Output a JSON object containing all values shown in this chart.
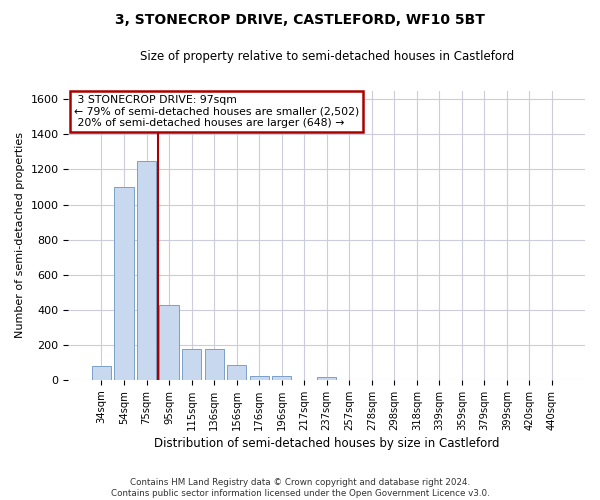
{
  "title": "3, STONECROP DRIVE, CASTLEFORD, WF10 5BT",
  "subtitle": "Size of property relative to semi-detached houses in Castleford",
  "xlabel": "Distribution of semi-detached houses by size in Castleford",
  "ylabel": "Number of semi-detached properties",
  "categories": [
    "34sqm",
    "54sqm",
    "75sqm",
    "95sqm",
    "115sqm",
    "136sqm",
    "156sqm",
    "176sqm",
    "196sqm",
    "217sqm",
    "237sqm",
    "257sqm",
    "278sqm",
    "298sqm",
    "318sqm",
    "339sqm",
    "359sqm",
    "379sqm",
    "399sqm",
    "420sqm",
    "440sqm"
  ],
  "values": [
    80,
    1100,
    1250,
    430,
    175,
    175,
    85,
    20,
    20,
    0,
    15,
    0,
    0,
    0,
    0,
    0,
    0,
    0,
    0,
    0,
    0
  ],
  "bar_color": "#c8d8ee",
  "bar_edge_color": "#7aa0c8",
  "vline_x": 2.5,
  "property_label": "3 STONECROP DRIVE: 97sqm",
  "smaller_pct": 79,
  "smaller_count": 2502,
  "larger_pct": 20,
  "larger_count": 648,
  "vline_color": "#aa0000",
  "ann_box_color": "#aa0000",
  "ylim": [
    0,
    1650
  ],
  "yticks": [
    0,
    200,
    400,
    600,
    800,
    1000,
    1200,
    1400,
    1600
  ],
  "grid_color": "#ccccdd",
  "bg_color": "#ffffff",
  "footer1": "Contains HM Land Registry data © Crown copyright and database right 2024.",
  "footer2": "Contains public sector information licensed under the Open Government Licence v3.0."
}
